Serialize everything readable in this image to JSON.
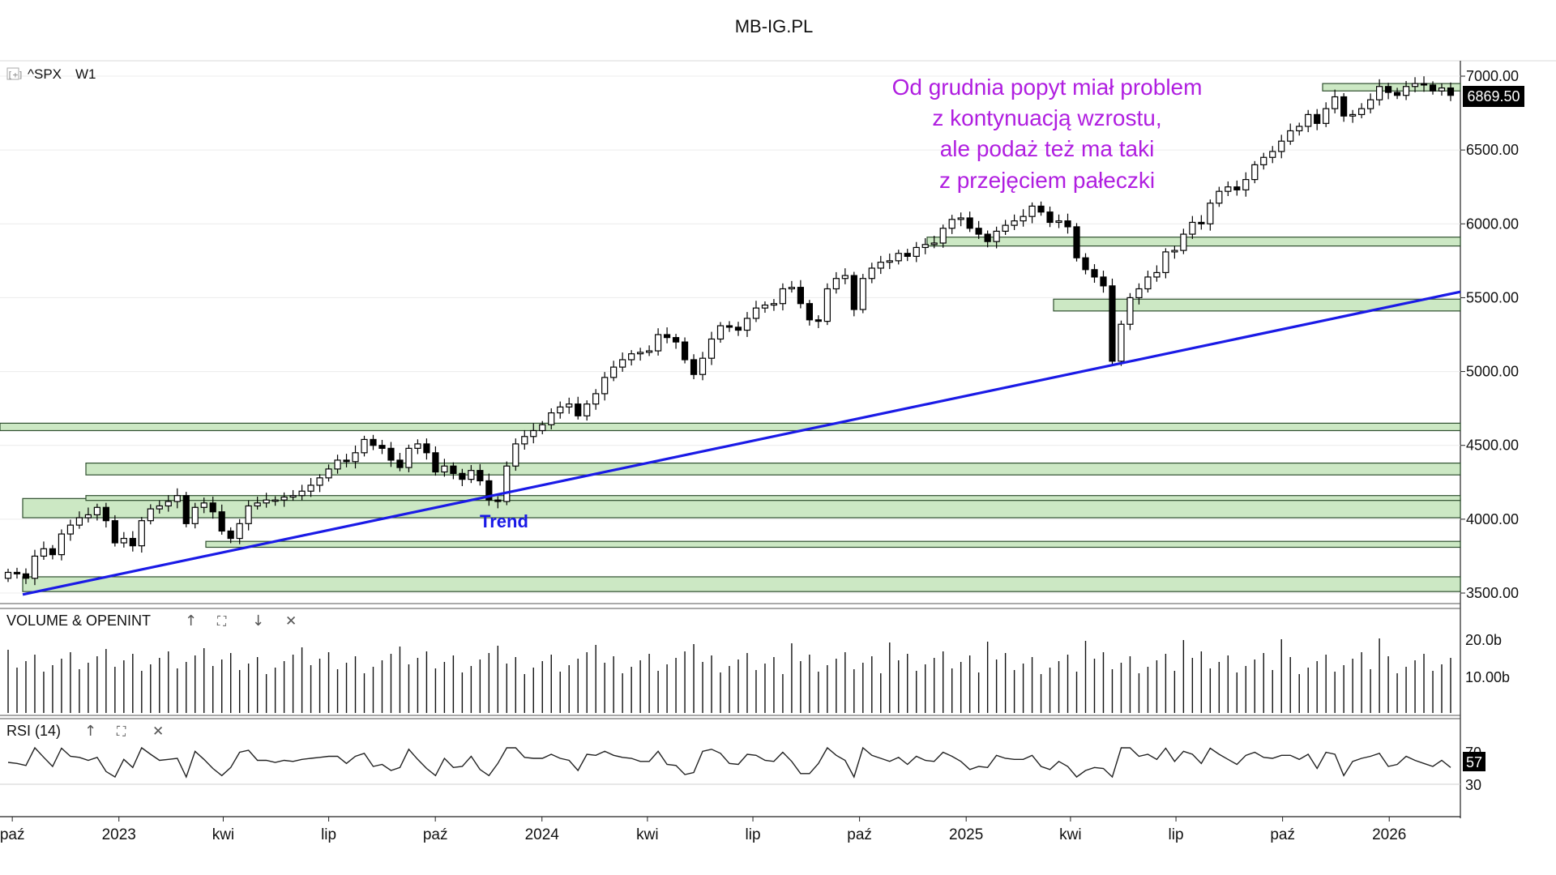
{
  "page": {
    "site_title": "MB-IG.PL",
    "symbol": "^SPX",
    "timeframe": "W1",
    "expand_icon": "[+]",
    "last_price_label": "6869.50",
    "annotation_lines": [
      "Od grudnia popyt miał problem",
      "z kontynuacją wzrostu,",
      "ale podaż też ma taki",
      "z przejęciem pałeczki"
    ],
    "trend_label": "Trend",
    "colors": {
      "zone_fill": "#cce8c4",
      "zone_stroke": "#2f4f2f",
      "trend": "#1a1ae6",
      "annotation": "#b01ee0",
      "candle": "#000000"
    }
  },
  "panels": {
    "volume": {
      "title": "VOLUME & OPENINT",
      "tick_labels": [
        "20.0b",
        "10.00b"
      ],
      "up_icon": "↑",
      "maximize_icon": "⛶",
      "down_icon": "↓",
      "close_icon": "✕"
    },
    "rsi": {
      "title": "RSI (14)",
      "tick_labels": [
        "70",
        "30"
      ],
      "current_value": "57",
      "up_icon": "↑",
      "maximize_icon": "⛶",
      "close_icon": "✕"
    }
  },
  "chart_data": {
    "type": "candlestick",
    "title": "^SPX W1",
    "y_ticks": [
      "7000.00",
      "6500.00",
      "6000.00",
      "5500.00",
      "5000.00",
      "4500.00",
      "4000.00",
      "3500.00"
    ],
    "ylim": [
      3500,
      7000
    ],
    "x_tick_labels": [
      "paź",
      "2023",
      "kwi",
      "lip",
      "paź",
      "2024",
      "kwi",
      "lip",
      "paź",
      "2025",
      "kwi",
      "lip",
      "paź",
      "2026"
    ],
    "x_range": [
      "2022-09-26",
      "2026-02-16"
    ],
    "weekly_closes": [
      3640,
      3630,
      3600,
      3750,
      3800,
      3760,
      3900,
      3960,
      4010,
      4030,
      4080,
      3990,
      3840,
      3870,
      3820,
      3990,
      4070,
      4090,
      4120,
      4160,
      3970,
      4080,
      4110,
      4050,
      3920,
      3870,
      3970,
      4090,
      4110,
      4130,
      4130,
      4150,
      4160,
      4190,
      4230,
      4280,
      4340,
      4400,
      4390,
      4450,
      4540,
      4500,
      4480,
      4400,
      4350,
      4480,
      4510,
      4450,
      4320,
      4360,
      4310,
      4270,
      4330,
      4260,
      4130,
      4120,
      4360,
      4510,
      4560,
      4600,
      4640,
      4720,
      4760,
      4780,
      4700,
      4780,
      4850,
      4960,
      5030,
      5080,
      5120,
      5130,
      5140,
      5250,
      5230,
      5200,
      5080,
      4980,
      5090,
      5220,
      5310,
      5300,
      5280,
      5360,
      5430,
      5450,
      5460,
      5560,
      5570,
      5460,
      5350,
      5340,
      5560,
      5630,
      5650,
      5420,
      5630,
      5700,
      5740,
      5750,
      5800,
      5780,
      5840,
      5860,
      5870,
      5970,
      6030,
      6040,
      5970,
      5930,
      5880,
      5950,
      5990,
      6020,
      6050,
      6120,
      6080,
      6010,
      6020,
      5980,
      5770,
      5690,
      5640,
      5580,
      5070,
      5320,
      5500,
      5560,
      5640,
      5670,
      5810,
      5820,
      5930,
      6010,
      6000,
      6140,
      6220,
      6250,
      6230,
      6300,
      6400,
      6450,
      6490,
      6560,
      6630,
      6660,
      6740,
      6680,
      6780,
      6860,
      6730,
      6740,
      6780,
      6840,
      6930,
      6890,
      6870,
      6930,
      6950,
      6940,
      6900,
      6920,
      6870
    ],
    "horizontal_zones": [
      [
        4010,
        4140
      ],
      [
        4300,
        4380
      ],
      [
        4600,
        4650
      ],
      [
        5410,
        5490
      ],
      [
        5850,
        5910
      ],
      [
        6900,
        6950
      ]
    ],
    "trend_line": {
      "label": "Trend",
      "from": [
        "2022-10-10",
        3490
      ],
      "to": [
        "2026-02-16",
        5540
      ]
    }
  }
}
